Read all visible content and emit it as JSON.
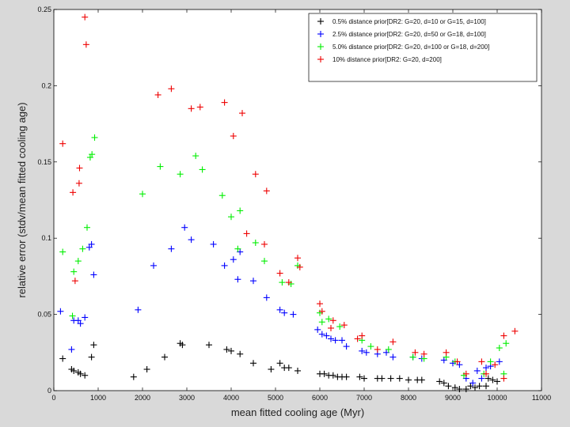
{
  "chart_data": {
    "type": "scatter",
    "xlabel": "mean fitted cooling age (Myr)",
    "ylabel": "relative error (stdv/mean fitted cooling age)",
    "xlim": [
      0,
      11000
    ],
    "ylim": [
      0,
      0.25
    ],
    "x_ticks": [
      "0",
      "1000",
      "2000",
      "3000",
      "4000",
      "5000",
      "6000",
      "7000",
      "8000",
      "9000",
      "10000",
      "11000"
    ],
    "y_ticks": [
      "0",
      "0.05",
      "0.1",
      "0.15",
      "0.2",
      "0.25"
    ],
    "grid": false,
    "legend_position": "top-right",
    "marker": "+",
    "series": [
      {
        "name": "0.5% distance prior[DR2: G=20, d=10 or G=15, d=100]",
        "color": "#000000",
        "points": [
          [
            200,
            0.021
          ],
          [
            400,
            0.014
          ],
          [
            450,
            0.013
          ],
          [
            550,
            0.012
          ],
          [
            600,
            0.011
          ],
          [
            700,
            0.01
          ],
          [
            850,
            0.022
          ],
          [
            900,
            0.03
          ],
          [
            1800,
            0.009
          ],
          [
            2100,
            0.014
          ],
          [
            2500,
            0.022
          ],
          [
            2850,
            0.031
          ],
          [
            2900,
            0.03
          ],
          [
            3500,
            0.03
          ],
          [
            3900,
            0.027
          ],
          [
            4000,
            0.026
          ],
          [
            4200,
            0.024
          ],
          [
            4500,
            0.018
          ],
          [
            4900,
            0.014
          ],
          [
            5100,
            0.018
          ],
          [
            5200,
            0.015
          ],
          [
            5300,
            0.015
          ],
          [
            5500,
            0.013
          ],
          [
            6000,
            0.011
          ],
          [
            6100,
            0.011
          ],
          [
            6200,
            0.01
          ],
          [
            6300,
            0.01
          ],
          [
            6400,
            0.009
          ],
          [
            6500,
            0.009
          ],
          [
            6600,
            0.009
          ],
          [
            6900,
            0.009
          ],
          [
            7000,
            0.008
          ],
          [
            7300,
            0.008
          ],
          [
            7400,
            0.008
          ],
          [
            7600,
            0.008
          ],
          [
            7800,
            0.008
          ],
          [
            8000,
            0.007
          ],
          [
            8200,
            0.007
          ],
          [
            8300,
            0.007
          ],
          [
            8700,
            0.006
          ],
          [
            8800,
            0.005
          ],
          [
            8900,
            0.003
          ],
          [
            9050,
            0.002
          ],
          [
            9150,
            0.001
          ],
          [
            9300,
            0.001
          ],
          [
            9400,
            0.003
          ],
          [
            9500,
            0.002
          ],
          [
            9600,
            0.003
          ],
          [
            9750,
            0.003
          ],
          [
            9800,
            0.008
          ],
          [
            9900,
            0.007
          ],
          [
            10000,
            0.006
          ]
        ]
      },
      {
        "name": "2.5% distance prior[DR2: G=20, d=50 or G=18, d=100]",
        "color": "#0000ff",
        "points": [
          [
            150,
            0.052
          ],
          [
            400,
            0.027
          ],
          [
            450,
            0.046
          ],
          [
            550,
            0.046
          ],
          [
            600,
            0.044
          ],
          [
            700,
            0.048
          ],
          [
            800,
            0.094
          ],
          [
            850,
            0.096
          ],
          [
            900,
            0.076
          ],
          [
            1900,
            0.053
          ],
          [
            2250,
            0.082
          ],
          [
            2650,
            0.093
          ],
          [
            2950,
            0.107
          ],
          [
            3100,
            0.099
          ],
          [
            3600,
            0.096
          ],
          [
            3850,
            0.082
          ],
          [
            4050,
            0.086
          ],
          [
            4150,
            0.073
          ],
          [
            4200,
            0.091
          ],
          [
            4500,
            0.072
          ],
          [
            4800,
            0.061
          ],
          [
            5100,
            0.053
          ],
          [
            5200,
            0.051
          ],
          [
            5400,
            0.05
          ],
          [
            5950,
            0.04
          ],
          [
            6050,
            0.037
          ],
          [
            6150,
            0.036
          ],
          [
            6250,
            0.034
          ],
          [
            6350,
            0.033
          ],
          [
            6500,
            0.033
          ],
          [
            6600,
            0.029
          ],
          [
            6950,
            0.026
          ],
          [
            7050,
            0.025
          ],
          [
            7300,
            0.024
          ],
          [
            7500,
            0.025
          ],
          [
            7650,
            0.022
          ],
          [
            8100,
            0.022
          ],
          [
            8300,
            0.021
          ],
          [
            8800,
            0.02
          ],
          [
            9000,
            0.018
          ],
          [
            9150,
            0.017
          ],
          [
            9300,
            0.008
          ],
          [
            9450,
            0.005
          ],
          [
            9550,
            0.013
          ],
          [
            9650,
            0.008
          ],
          [
            9750,
            0.015
          ],
          [
            9850,
            0.016
          ],
          [
            10050,
            0.019
          ]
        ]
      },
      {
        "name": "5.0% distance prior[DR2: G=20, d=100 or G=18, d=200]",
        "color": "#00ee00",
        "points": [
          [
            200,
            0.091
          ],
          [
            420,
            0.049
          ],
          [
            450,
            0.078
          ],
          [
            550,
            0.085
          ],
          [
            650,
            0.093
          ],
          [
            750,
            0.107
          ],
          [
            820,
            0.153
          ],
          [
            860,
            0.155
          ],
          [
            920,
            0.166
          ],
          [
            2000,
            0.129
          ],
          [
            2400,
            0.147
          ],
          [
            2850,
            0.142
          ],
          [
            3200,
            0.154
          ],
          [
            3350,
            0.145
          ],
          [
            3800,
            0.128
          ],
          [
            4000,
            0.114
          ],
          [
            4200,
            0.118
          ],
          [
            4150,
            0.093
          ],
          [
            4550,
            0.097
          ],
          [
            4750,
            0.085
          ],
          [
            5150,
            0.071
          ],
          [
            5350,
            0.07
          ],
          [
            5500,
            0.082
          ],
          [
            6000,
            0.051
          ],
          [
            6050,
            0.045
          ],
          [
            6200,
            0.047
          ],
          [
            6450,
            0.042
          ],
          [
            6950,
            0.033
          ],
          [
            7150,
            0.029
          ],
          [
            7550,
            0.027
          ],
          [
            8100,
            0.022
          ],
          [
            8350,
            0.021
          ],
          [
            8850,
            0.022
          ],
          [
            9050,
            0.019
          ],
          [
            9250,
            0.01
          ],
          [
            9700,
            0.011
          ],
          [
            9850,
            0.019
          ],
          [
            10050,
            0.028
          ],
          [
            10150,
            0.011
          ],
          [
            10200,
            0.031
          ]
        ]
      },
      {
        "name": "10% distance prior[DR2: G=20, d=200]",
        "color": "#ee0000",
        "points": [
          [
            200,
            0.162
          ],
          [
            430,
            0.13
          ],
          [
            480,
            0.072
          ],
          [
            570,
            0.136
          ],
          [
            580,
            0.146
          ],
          [
            700,
            0.245
          ],
          [
            730,
            0.227
          ],
          [
            2350,
            0.194
          ],
          [
            2650,
            0.198
          ],
          [
            3100,
            0.185
          ],
          [
            3300,
            0.186
          ],
          [
            3850,
            0.189
          ],
          [
            4050,
            0.167
          ],
          [
            4250,
            0.182
          ],
          [
            4350,
            0.103
          ],
          [
            4550,
            0.142
          ],
          [
            4750,
            0.096
          ],
          [
            4800,
            0.131
          ],
          [
            5100,
            0.077
          ],
          [
            5300,
            0.071
          ],
          [
            5500,
            0.087
          ],
          [
            5550,
            0.081
          ],
          [
            6000,
            0.057
          ],
          [
            6050,
            0.052
          ],
          [
            6250,
            0.041
          ],
          [
            6300,
            0.046
          ],
          [
            6550,
            0.043
          ],
          [
            6850,
            0.034
          ],
          [
            6950,
            0.036
          ],
          [
            7300,
            0.027
          ],
          [
            7650,
            0.032
          ],
          [
            8150,
            0.025
          ],
          [
            8350,
            0.024
          ],
          [
            8850,
            0.025
          ],
          [
            9100,
            0.019
          ],
          [
            9300,
            0.011
          ],
          [
            9650,
            0.019
          ],
          [
            9750,
            0.011
          ],
          [
            9950,
            0.017
          ],
          [
            10150,
            0.036
          ],
          [
            10400,
            0.039
          ],
          [
            10150,
            0.008
          ]
        ]
      }
    ]
  }
}
